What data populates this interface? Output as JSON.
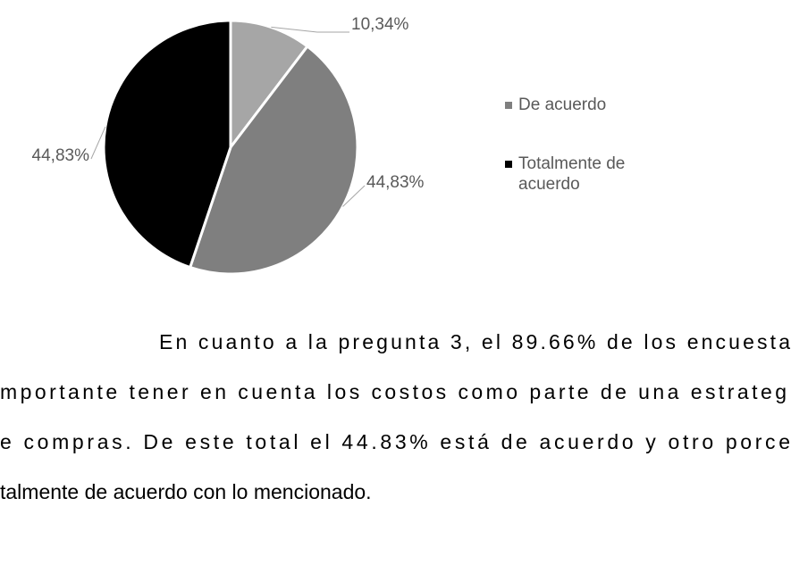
{
  "chart_data": {
    "type": "pie",
    "categories": [
      null,
      "De acuerdo",
      "Totalmente de acuerdo"
    ],
    "values": [
      10.34,
      44.83,
      44.83
    ],
    "value_labels": [
      "10,34%",
      "44,83%",
      "44,83%"
    ],
    "colors": [
      "#a6a6a6",
      "#7f7f7f",
      "#000000"
    ],
    "legend": "right"
  },
  "paragraph": [
    "En cuanto a la pregunta 3, el 89.66% de los encuesta",
    "mportante tener en cuenta los costos como parte de una estrateg",
    "e compras. De este total el 44.83% está de acuerdo y otro porce",
    "talmente de acuerdo con lo mencionado."
  ]
}
